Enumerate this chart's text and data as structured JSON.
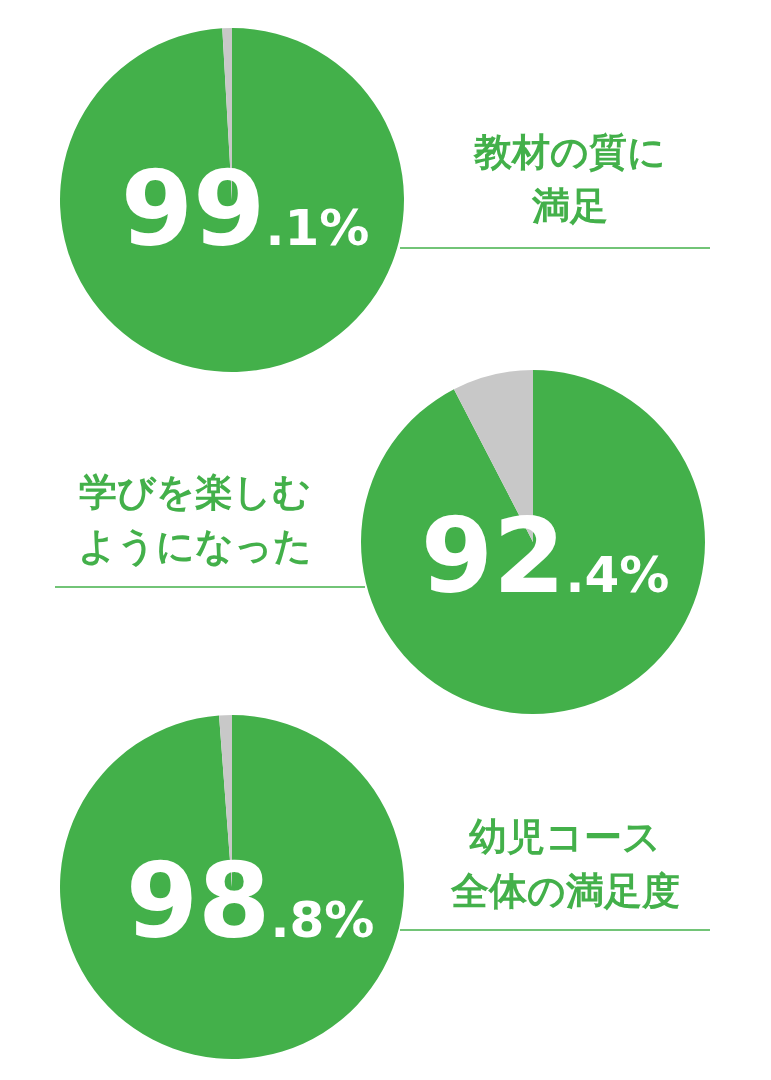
{
  "chart_data": [
    {
      "type": "pie",
      "title": "教材の質に満足",
      "categories": [
        null,
        null
      ],
      "values": [
        99.1,
        0.9
      ],
      "colors": [
        "#43b04a",
        "#c8c8c8"
      ],
      "value_labels": [
        "99.1%",
        null
      ]
    },
    {
      "type": "pie",
      "title": "学びを楽しむようになった",
      "categories": [
        null,
        null
      ],
      "values": [
        92.4,
        7.6
      ],
      "colors": [
        "#43b04a",
        "#c8c8c8"
      ],
      "value_labels": [
        "92.4%",
        null
      ]
    },
    {
      "type": "pie",
      "title": "幼児コース全体の満足度",
      "categories": [
        null,
        null
      ],
      "values": [
        98.8,
        1.2
      ],
      "colors": [
        "#43b04a",
        "#c8c8c8"
      ],
      "value_labels": [
        "98.8%",
        null
      ]
    }
  ]
}
